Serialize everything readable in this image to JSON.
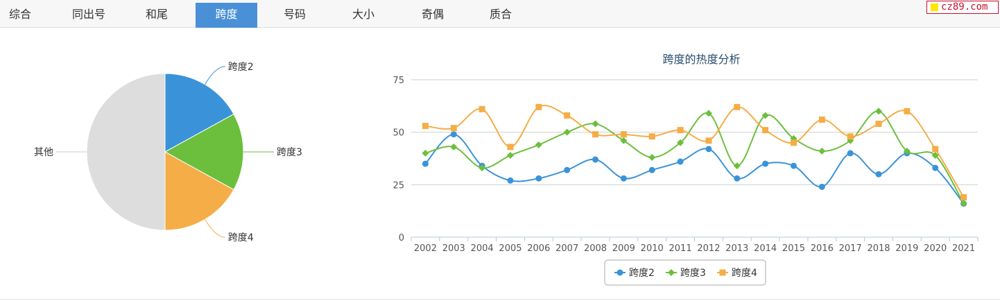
{
  "tabs": [
    {
      "label": "综合"
    },
    {
      "label": "同出号"
    },
    {
      "label": "和尾"
    },
    {
      "label": "跨度",
      "active": true
    },
    {
      "label": "号码"
    },
    {
      "label": "大小"
    },
    {
      "label": "奇偶"
    },
    {
      "label": "质合"
    }
  ],
  "logo": {
    "text": "cz89.com",
    "border_color": "#c8102e",
    "square_color": "#ffe600"
  },
  "colors": {
    "accent": "#4a90d6",
    "blue": "#3a93d8",
    "green": "#6cbf3d",
    "orange": "#f5ad47",
    "gray": "#dddddd"
  },
  "chart_data": [
    {
      "type": "pie",
      "labels": [
        "跨度2",
        "跨度3",
        "跨度4",
        "其他"
      ],
      "values": [
        17,
        16,
        17,
        50
      ],
      "colors": [
        "#3a93d8",
        "#6cbf3d",
        "#f5ad47",
        "#dddddd"
      ]
    },
    {
      "type": "line",
      "title": "跨度的热度分析",
      "categories": [
        "2002",
        "2003",
        "2004",
        "2005",
        "2006",
        "2007",
        "2008",
        "2009",
        "2010",
        "2011",
        "2012",
        "2013",
        "2014",
        "2015",
        "2016",
        "2017",
        "2018",
        "2019",
        "2020",
        "2021"
      ],
      "series": [
        {
          "name": "跨度2",
          "color": "#3a93d8",
          "marker": "circle",
          "values": [
            35,
            49,
            34,
            27,
            28,
            32,
            37,
            28,
            32,
            36,
            42,
            28,
            35,
            34,
            24,
            40,
            30,
            40,
            33,
            16
          ]
        },
        {
          "name": "跨度3",
          "color": "#6cbf3d",
          "marker": "diamond",
          "values": [
            40,
            43,
            33,
            39,
            44,
            50,
            54,
            46,
            38,
            45,
            59,
            34,
            58,
            47,
            41,
            46,
            60,
            41,
            39,
            16
          ]
        },
        {
          "name": "跨度4",
          "color": "#f5ad47",
          "marker": "square",
          "values": [
            53,
            52,
            61,
            43,
            62,
            58,
            49,
            49,
            48,
            51,
            46,
            62,
            51,
            45,
            56,
            48,
            54,
            60,
            42,
            19
          ]
        }
      ],
      "yticks": [
        0,
        25,
        50,
        75
      ],
      "ylim": [
        0,
        75
      ],
      "grid": true,
      "legend": "bottom-center"
    }
  ]
}
